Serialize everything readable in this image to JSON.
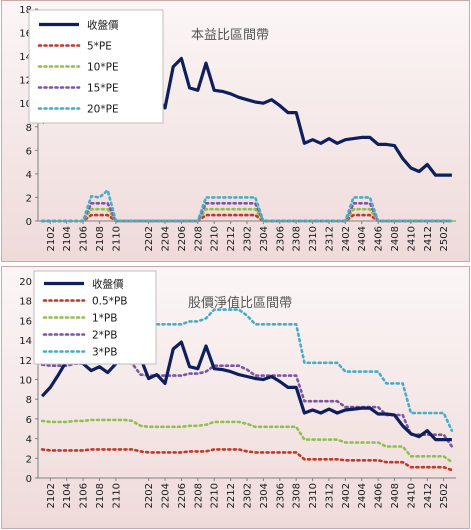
{
  "chart_data": [
    {
      "type": "line",
      "title": "本益比區間帶",
      "ylim": [
        0,
        18
      ],
      "yticks": [
        0,
        2,
        4,
        6,
        8,
        10,
        12,
        14,
        16,
        18
      ],
      "grid": false,
      "legend_position": "top-left",
      "x": [
        "2101",
        "2102",
        "2103",
        "2104",
        "2105",
        "2106",
        "2107",
        "2108",
        "2109",
        "2110",
        "2111",
        "2112",
        "2201",
        "2202",
        "2203",
        "2204",
        "2205",
        "2206",
        "2207",
        "2208",
        "2209",
        "2210",
        "2211",
        "2212",
        "2301",
        "2302",
        "2303",
        "2304",
        "2305",
        "2306",
        "2307",
        "2308",
        "2309",
        "2310",
        "2311",
        "2312",
        "2401",
        "2402",
        "2403",
        "2404",
        "2405",
        "2406",
        "2407",
        "2408",
        "2409",
        "2410",
        "2411",
        "2412",
        "2501",
        "2502",
        "2503"
      ],
      "xtick_labels": [
        "2102",
        "2104",
        "2106",
        "2108",
        "2110",
        "2202",
        "2204",
        "2206",
        "2208",
        "2210",
        "2212",
        "2302",
        "2304",
        "2306",
        "2308",
        "2310",
        "2312",
        "2402",
        "2404",
        "2406",
        "2408",
        "2410",
        "2412",
        "2502"
      ],
      "series": [
        {
          "name": "收盤價",
          "color": "#0f1f5c",
          "style": "solid",
          "values": [
            8.3,
            9.2,
            10.5,
            11.9,
            12.3,
            11.6,
            10.9,
            11.3,
            10.7,
            11.6,
            12.8,
            13.2,
            12.2,
            10.1,
            10.5,
            9.6,
            13.1,
            13.8,
            11.3,
            11.1,
            13.4,
            11.1,
            11.0,
            10.8,
            10.5,
            10.3,
            10.1,
            10.0,
            10.3,
            9.8,
            9.2,
            9.2,
            6.6,
            6.9,
            6.6,
            7.0,
            6.6,
            6.9,
            7.0,
            7.1,
            7.1,
            6.5,
            6.5,
            6.4,
            5.3,
            4.5,
            4.2,
            4.8,
            3.9,
            3.9,
            3.9
          ]
        },
        {
          "name": "5*PE",
          "color": "#c0392b",
          "style": "dotted",
          "values": [
            0,
            0,
            0,
            0,
            0,
            0,
            0.5,
            0.5,
            0.5,
            0,
            0,
            0,
            0,
            0,
            0,
            0,
            0,
            0,
            0,
            0,
            0.5,
            0.5,
            0.5,
            0.5,
            0.5,
            0.5,
            0.5,
            0,
            0,
            0,
            0,
            0,
            0,
            0,
            0,
            0,
            0,
            0,
            0.5,
            0.5,
            0.5,
            0,
            0,
            0,
            0,
            0,
            0,
            0,
            0,
            0,
            0
          ]
        },
        {
          "name": "10*PE",
          "color": "#92c050",
          "style": "dotted",
          "values": [
            0,
            0,
            0,
            0,
            0,
            0,
            1.0,
            1.0,
            1.0,
            0,
            0,
            0,
            0,
            0,
            0,
            0,
            0,
            0,
            0,
            0,
            1.0,
            1.0,
            1.0,
            1.0,
            1.0,
            1.0,
            1.0,
            0,
            0,
            0,
            0,
            0,
            0,
            0,
            0,
            0,
            0,
            0,
            1.0,
            1.0,
            1.0,
            0,
            0,
            0,
            0,
            0,
            0,
            0,
            0,
            0,
            0
          ]
        },
        {
          "name": "15*PE",
          "color": "#7b56a3",
          "style": "dotted",
          "values": [
            0,
            0,
            0,
            0,
            0,
            0,
            1.5,
            1.5,
            1.5,
            0,
            0,
            0,
            0,
            0,
            0,
            0,
            0,
            0,
            0,
            0,
            1.5,
            1.5,
            1.5,
            1.5,
            1.5,
            1.5,
            1.5,
            0,
            0,
            0,
            0,
            0,
            0,
            0,
            0,
            0,
            0,
            0,
            1.5,
            1.5,
            1.5,
            0,
            0,
            0,
            0,
            0,
            0,
            0,
            0,
            0,
            0
          ]
        },
        {
          "name": "20*PE",
          "color": "#4bacc6",
          "style": "dotted",
          "values": [
            0,
            0,
            0,
            0,
            0,
            0,
            2.1,
            2.0,
            2.6,
            0,
            0,
            0,
            0,
            0,
            0,
            0,
            0,
            0,
            0,
            0,
            2.0,
            2.0,
            2.0,
            2.0,
            2.0,
            2.0,
            2.0,
            0,
            0,
            0,
            0,
            0,
            0,
            0,
            0,
            0,
            0,
            0,
            2.0,
            2.0,
            2.0,
            0,
            0,
            0,
            0,
            0,
            0,
            0,
            0,
            0,
            0
          ]
        }
      ]
    },
    {
      "type": "line",
      "title": "股價淨值比區間帶",
      "ylim": [
        0,
        20
      ],
      "yticks": [
        0,
        2,
        4,
        6,
        8,
        10,
        12,
        14,
        16,
        18,
        20
      ],
      "grid": false,
      "legend_position": "top-left",
      "x": [
        "2101",
        "2102",
        "2103",
        "2104",
        "2105",
        "2106",
        "2107",
        "2108",
        "2109",
        "2110",
        "2111",
        "2112",
        "2201",
        "2202",
        "2203",
        "2204",
        "2205",
        "2206",
        "2207",
        "2208",
        "2209",
        "2210",
        "2211",
        "2212",
        "2301",
        "2302",
        "2303",
        "2304",
        "2305",
        "2306",
        "2307",
        "2308",
        "2309",
        "2310",
        "2311",
        "2312",
        "2401",
        "2402",
        "2403",
        "2404",
        "2405",
        "2406",
        "2407",
        "2408",
        "2409",
        "2410",
        "2411",
        "2412",
        "2501",
        "2502",
        "2503"
      ],
      "xtick_labels": [
        "2102",
        "2104",
        "2106",
        "2108",
        "2110",
        "2202",
        "2204",
        "2206",
        "2208",
        "2210",
        "2212",
        "2302",
        "2304",
        "2306",
        "2308",
        "2310",
        "2312",
        "2402",
        "2404",
        "2406",
        "2408",
        "2410",
        "2412",
        "2502"
      ],
      "series": [
        {
          "name": "收盤價",
          "color": "#0f1f5c",
          "style": "solid",
          "values": [
            8.3,
            9.2,
            10.5,
            11.9,
            12.3,
            11.6,
            10.9,
            11.3,
            10.7,
            11.6,
            12.8,
            13.2,
            12.2,
            10.1,
            10.5,
            9.6,
            13.1,
            13.8,
            11.3,
            11.1,
            13.4,
            11.1,
            11.0,
            10.8,
            10.5,
            10.3,
            10.1,
            10.0,
            10.3,
            9.8,
            9.2,
            9.2,
            6.6,
            6.9,
            6.6,
            7.0,
            6.6,
            6.9,
            7.0,
            7.1,
            7.1,
            6.5,
            6.5,
            6.4,
            5.3,
            4.5,
            4.2,
            4.8,
            3.9,
            3.9,
            3.9
          ]
        },
        {
          "name": "0.5*PB",
          "color": "#c0392b",
          "style": "dotted",
          "values": [
            2.9,
            2.8,
            2.8,
            2.8,
            2.8,
            2.8,
            2.9,
            2.9,
            2.9,
            2.9,
            2.9,
            2.9,
            2.7,
            2.6,
            2.6,
            2.6,
            2.6,
            2.6,
            2.7,
            2.7,
            2.7,
            2.9,
            2.9,
            2.9,
            2.9,
            2.7,
            2.6,
            2.6,
            2.6,
            2.6,
            2.6,
            2.6,
            1.9,
            1.9,
            1.9,
            1.9,
            1.9,
            1.8,
            1.8,
            1.8,
            1.8,
            1.8,
            1.6,
            1.6,
            1.6,
            1.1,
            1.1,
            1.1,
            1.1,
            1.1,
            0.8
          ]
        },
        {
          "name": "1*PB",
          "color": "#92c050",
          "style": "dotted",
          "values": [
            5.8,
            5.7,
            5.7,
            5.7,
            5.8,
            5.8,
            5.9,
            5.9,
            5.9,
            5.9,
            5.9,
            5.8,
            5.3,
            5.2,
            5.2,
            5.2,
            5.2,
            5.2,
            5.3,
            5.3,
            5.4,
            5.7,
            5.7,
            5.7,
            5.7,
            5.5,
            5.2,
            5.2,
            5.2,
            5.2,
            5.2,
            5.2,
            3.9,
            3.9,
            3.9,
            3.9,
            3.9,
            3.6,
            3.6,
            3.6,
            3.6,
            3.6,
            3.2,
            3.2,
            3.2,
            2.2,
            2.2,
            2.2,
            2.2,
            2.2,
            1.6
          ]
        },
        {
          "name": "2*PB",
          "color": "#7b56a3",
          "style": "dotted",
          "values": [
            11.5,
            11.4,
            11.4,
            11.4,
            11.6,
            11.6,
            11.8,
            11.8,
            11.8,
            11.8,
            11.8,
            11.6,
            10.5,
            10.4,
            10.4,
            10.4,
            10.4,
            10.4,
            10.6,
            10.6,
            10.8,
            11.4,
            11.4,
            11.4,
            11.4,
            11.0,
            10.4,
            10.4,
            10.4,
            10.4,
            10.4,
            10.4,
            7.8,
            7.8,
            7.8,
            7.8,
            7.8,
            7.2,
            7.2,
            7.2,
            7.2,
            7.2,
            6.4,
            6.4,
            6.4,
            4.4,
            4.4,
            4.4,
            4.4,
            4.4,
            3.2
          ]
        },
        {
          "name": "3*PB",
          "color": "#4bacc6",
          "style": "dotted",
          "values": [
            17.3,
            17.1,
            17.1,
            17.1,
            17.4,
            17.4,
            17.7,
            17.7,
            17.7,
            17.7,
            17.7,
            17.4,
            15.8,
            15.6,
            15.6,
            15.6,
            15.6,
            15.6,
            15.9,
            15.9,
            16.2,
            17.1,
            17.1,
            17.1,
            17.1,
            16.5,
            15.6,
            15.6,
            15.6,
            15.6,
            15.6,
            15.6,
            11.7,
            11.7,
            11.7,
            11.7,
            11.7,
            10.8,
            10.8,
            10.8,
            10.8,
            10.8,
            9.6,
            9.6,
            9.6,
            6.6,
            6.6,
            6.6,
            6.6,
            6.6,
            4.8
          ]
        }
      ]
    }
  ]
}
